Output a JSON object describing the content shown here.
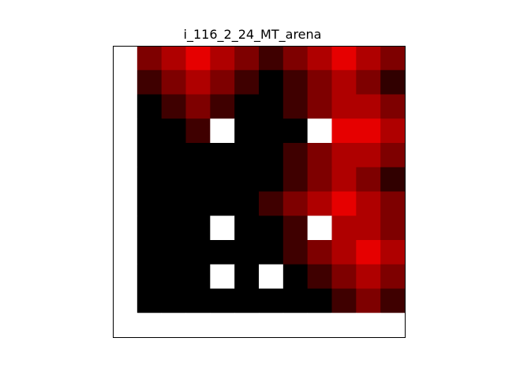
{
  "chart_data": {
    "type": "heatmap",
    "title": "i_116_2_24_MT_arena",
    "xlabel": "",
    "ylabel": "",
    "colormap": "hot",
    "vmin": 0,
    "vmax": 1,
    "missing_color": "#ffffff",
    "grid": false,
    "n_cols": 12,
    "n_rows": 12,
    "values": [
      [
        null,
        0.18,
        0.25,
        0.33,
        0.25,
        0.18,
        0.09,
        0.18,
        0.25,
        0.33,
        0.25,
        0.18
      ],
      [
        null,
        0.09,
        0.18,
        0.25,
        0.18,
        0.09,
        0.0,
        0.09,
        0.18,
        0.25,
        0.18,
        0.07
      ],
      [
        null,
        0.0,
        0.09,
        0.18,
        0.09,
        0.0,
        0.0,
        0.09,
        0.18,
        0.25,
        0.25,
        0.18
      ],
      [
        null,
        0.0,
        0.0,
        0.09,
        null,
        0.0,
        0.0,
        0.0,
        null,
        0.33,
        0.33,
        0.25
      ],
      [
        null,
        0.0,
        0.0,
        0.0,
        0.0,
        0.0,
        0.0,
        0.09,
        0.18,
        0.25,
        0.25,
        0.18
      ],
      [
        null,
        0.0,
        0.0,
        0.0,
        0.0,
        0.0,
        0.0,
        0.09,
        0.18,
        0.25,
        0.18,
        0.07
      ],
      [
        null,
        0.0,
        0.0,
        0.0,
        0.0,
        0.0,
        0.09,
        0.18,
        0.25,
        0.33,
        0.25,
        0.18
      ],
      [
        null,
        0.0,
        0.0,
        0.0,
        null,
        0.0,
        0.0,
        0.09,
        null,
        0.25,
        0.25,
        0.18
      ],
      [
        null,
        0.0,
        0.0,
        0.0,
        0.0,
        0.0,
        0.0,
        0.09,
        0.18,
        0.25,
        0.33,
        0.25
      ],
      [
        null,
        0.0,
        0.0,
        0.0,
        null,
        0.0,
        null,
        0.0,
        0.09,
        0.18,
        0.25,
        0.18
      ],
      [
        null,
        0.0,
        0.0,
        0.0,
        0.0,
        0.0,
        0.0,
        0.0,
        0.0,
        0.09,
        0.18,
        0.09
      ],
      [
        null,
        null,
        null,
        null,
        null,
        null,
        null,
        null,
        null,
        null,
        null,
        null
      ]
    ]
  }
}
